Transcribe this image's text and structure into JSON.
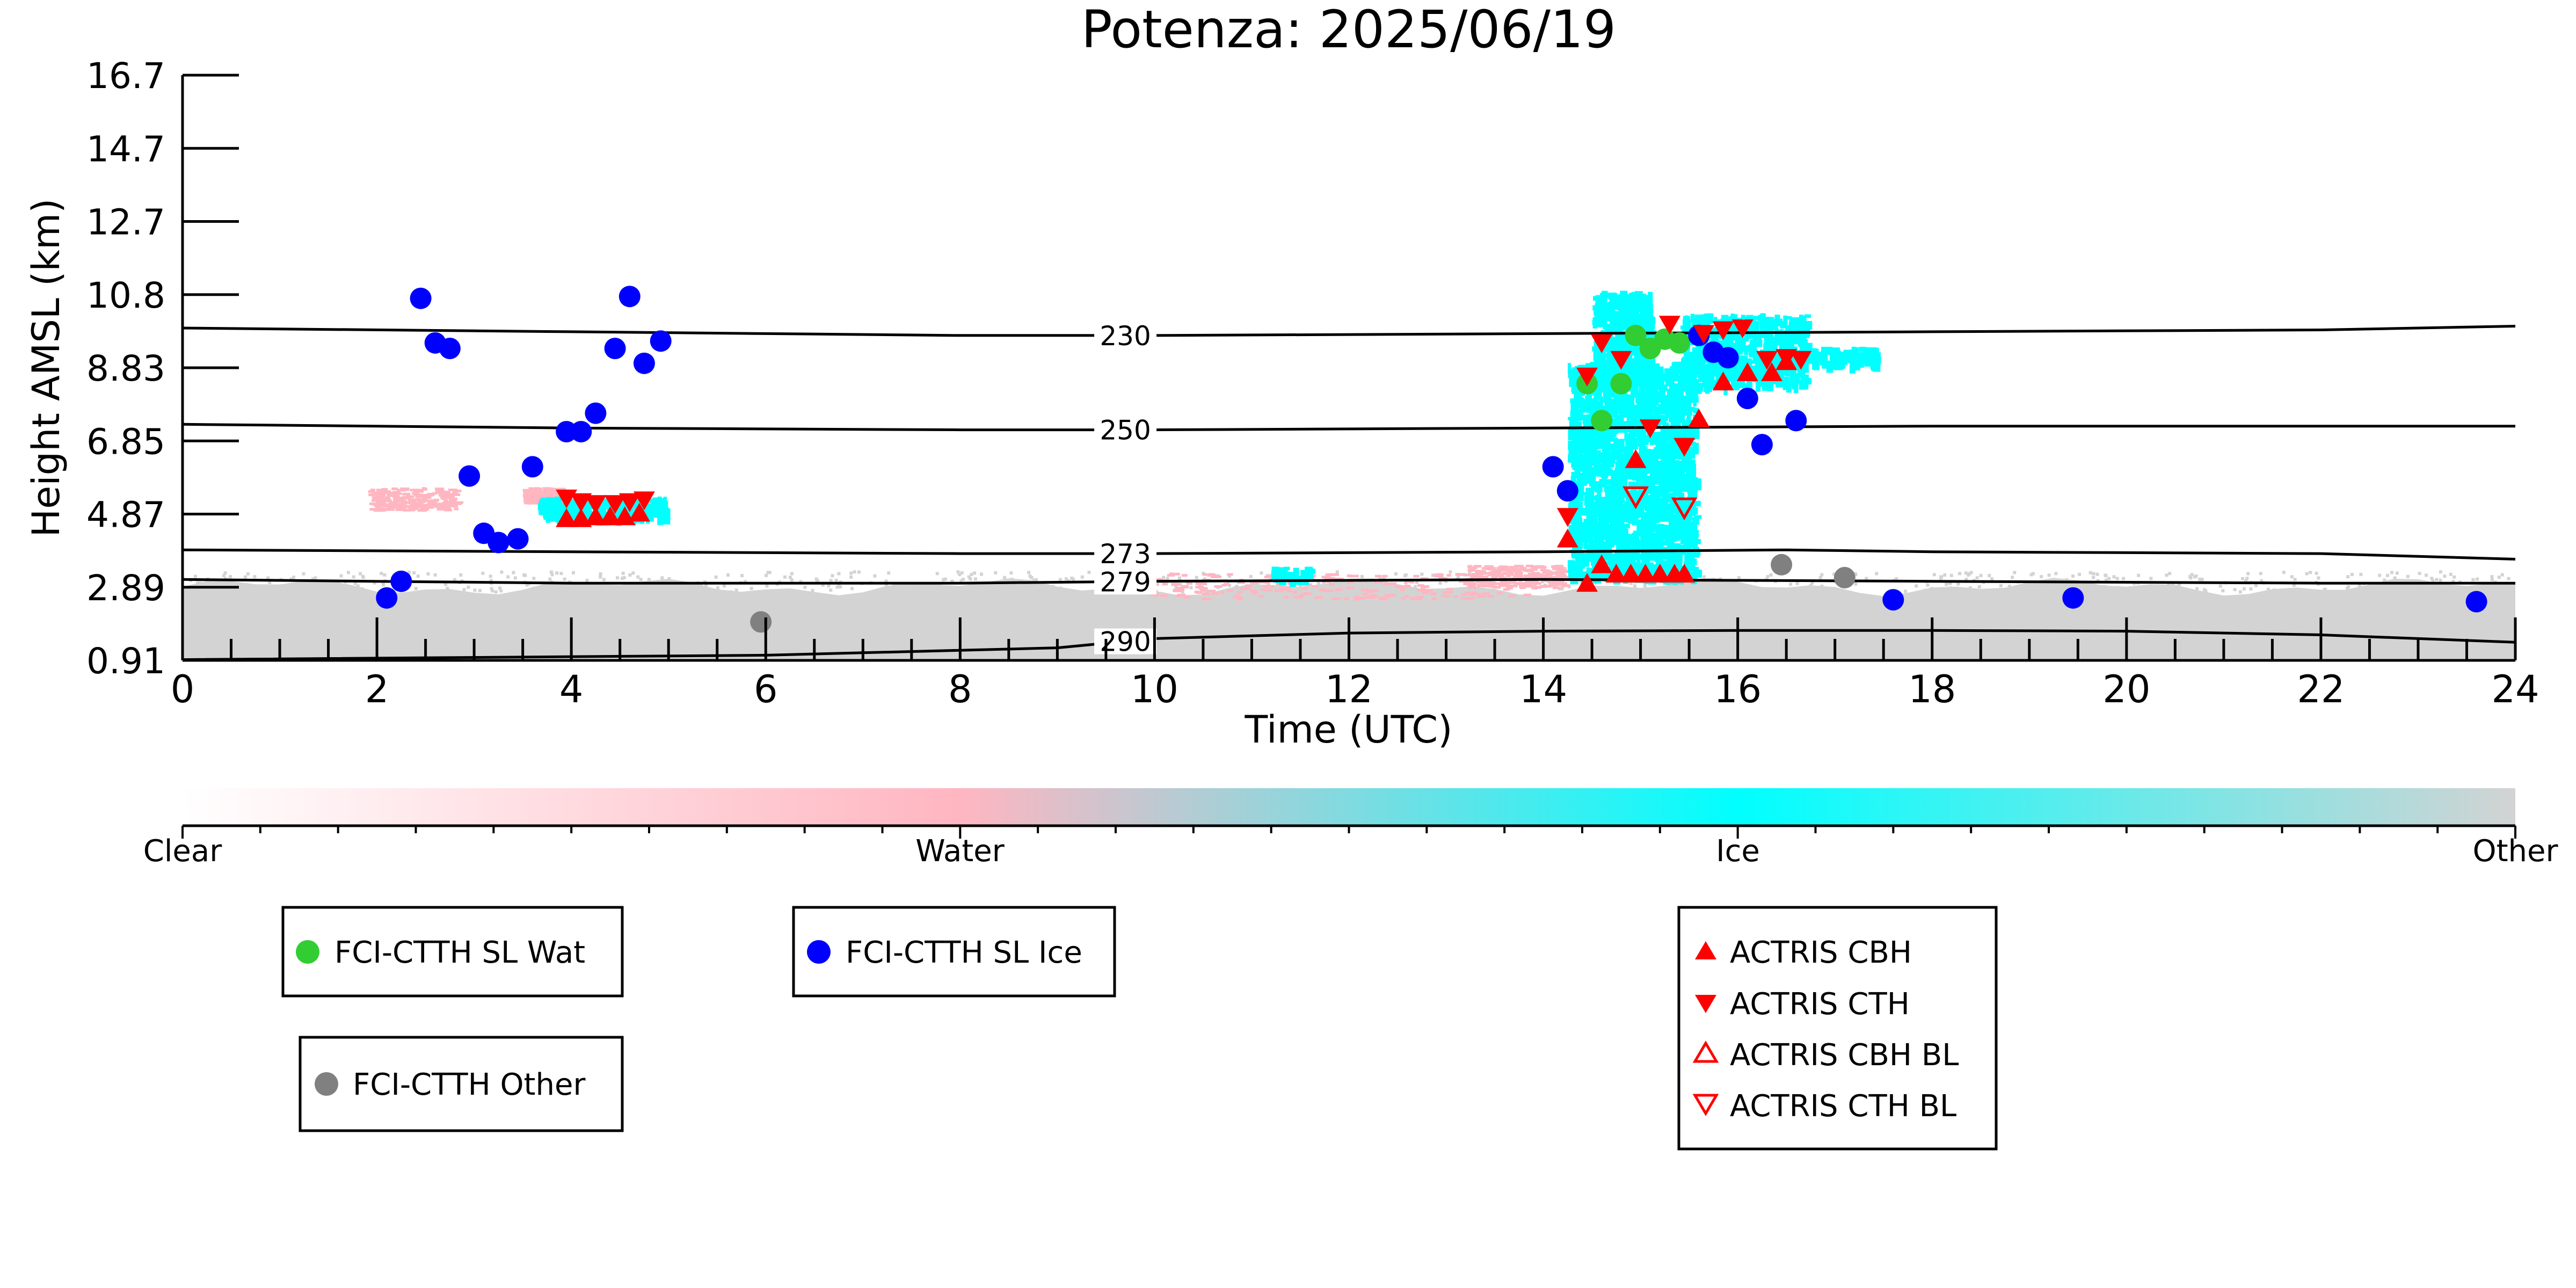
{
  "chart_data": {
    "type": "scatter",
    "title": "Potenza: 2025/06/19",
    "xlabel": "Time (UTC)",
    "ylabel": "Height AMSL (km)",
    "xlim": [
      0,
      24
    ],
    "ylim": [
      0.91,
      16.7
    ],
    "x_ticks": [
      "0",
      "2",
      "4",
      "6",
      "8",
      "10",
      "12",
      "14",
      "16",
      "18",
      "20",
      "22",
      "24"
    ],
    "y_ticks": [
      "0.91",
      "2.89",
      "4.87",
      "6.85",
      "8.83",
      "10.8",
      "12.7",
      "14.7",
      "16.7"
    ],
    "y_tick_values": [
      0.91,
      2.89,
      4.87,
      6.85,
      8.83,
      10.8,
      12.7,
      14.7,
      16.7
    ],
    "grid": false,
    "colors": {
      "clear": "#ffffff",
      "water": "#ffb6c1",
      "ice": "#00ffff",
      "other": "#d3d3d3",
      "wat_marker": "#32cd32",
      "ice_marker": "#0000ff",
      "other_marker": "#808080",
      "actris": "#ff0000"
    },
    "isotherms": [
      {
        "label": "230",
        "label_x": 9.7,
        "points": [
          [
            0,
            9.9
          ],
          [
            4,
            9.8
          ],
          [
            8,
            9.7
          ],
          [
            10,
            9.7
          ],
          [
            14,
            9.75
          ],
          [
            18,
            9.8
          ],
          [
            22,
            9.85
          ],
          [
            24,
            9.95
          ]
        ]
      },
      {
        "label": "250",
        "label_x": 9.7,
        "points": [
          [
            0,
            7.3
          ],
          [
            4,
            7.2
          ],
          [
            8,
            7.15
          ],
          [
            10,
            7.15
          ],
          [
            14,
            7.2
          ],
          [
            18,
            7.25
          ],
          [
            22,
            7.25
          ],
          [
            24,
            7.25
          ]
        ]
      },
      {
        "label": "273",
        "label_x": 9.7,
        "points": [
          [
            0,
            3.9
          ],
          [
            4,
            3.85
          ],
          [
            8,
            3.8
          ],
          [
            10,
            3.8
          ],
          [
            14,
            3.85
          ],
          [
            16.5,
            3.9
          ],
          [
            18,
            3.85
          ],
          [
            22,
            3.8
          ],
          [
            24,
            3.65
          ]
        ]
      },
      {
        "label": "279",
        "label_x": 9.7,
        "points": [
          [
            0,
            3.1
          ],
          [
            4,
            3.0
          ],
          [
            8,
            3.0
          ],
          [
            10,
            3.05
          ],
          [
            14,
            3.1
          ],
          [
            18,
            3.05
          ],
          [
            22,
            3.0
          ],
          [
            24,
            3.0
          ]
        ]
      },
      {
        "label": "290",
        "label_x": 9.7,
        "points": [
          [
            0,
            0.93
          ],
          [
            6,
            1.05
          ],
          [
            9,
            1.25
          ],
          [
            10,
            1.5
          ],
          [
            12,
            1.65
          ],
          [
            14,
            1.7
          ],
          [
            16,
            1.72
          ],
          [
            18,
            1.72
          ],
          [
            20,
            1.7
          ],
          [
            22,
            1.6
          ],
          [
            24,
            1.4
          ]
        ]
      }
    ],
    "series": [
      {
        "name": "FCI-CTTH SL Wat",
        "marker": "circle",
        "color": "#32cd32",
        "points": [
          [
            14.45,
            8.4
          ],
          [
            14.6,
            7.4
          ],
          [
            14.8,
            8.4
          ],
          [
            14.95,
            9.7
          ],
          [
            15.1,
            9.35
          ],
          [
            15.25,
            9.6
          ],
          [
            15.4,
            9.5
          ]
        ]
      },
      {
        "name": "FCI-CTTH SL Ice",
        "marker": "circle",
        "color": "#0000ff",
        "points": [
          [
            2.1,
            2.6
          ],
          [
            2.25,
            3.05
          ],
          [
            2.45,
            10.7
          ],
          [
            2.6,
            9.5
          ],
          [
            2.75,
            9.35
          ],
          [
            2.95,
            5.9
          ],
          [
            3.1,
            4.35
          ],
          [
            3.25,
            4.1
          ],
          [
            3.45,
            4.2
          ],
          [
            3.6,
            6.15
          ],
          [
            3.95,
            7.1
          ],
          [
            4.1,
            7.1
          ],
          [
            4.25,
            7.6
          ],
          [
            4.45,
            9.35
          ],
          [
            4.6,
            10.75
          ],
          [
            4.75,
            8.95
          ],
          [
            4.92,
            9.55
          ],
          [
            14.1,
            6.15
          ],
          [
            14.25,
            5.5
          ],
          [
            15.6,
            9.7
          ],
          [
            15.75,
            9.25
          ],
          [
            15.9,
            9.1
          ],
          [
            16.1,
            8.0
          ],
          [
            16.25,
            6.75
          ],
          [
            16.6,
            7.4
          ],
          [
            17.6,
            2.55
          ],
          [
            19.45,
            2.6
          ],
          [
            23.6,
            2.5
          ]
        ]
      },
      {
        "name": "FCI-CTTH Other",
        "marker": "circle",
        "color": "#808080",
        "points": [
          [
            5.95,
            1.95
          ],
          [
            16.45,
            3.5
          ],
          [
            17.1,
            3.15
          ]
        ]
      },
      {
        "name": "ACTRIS CBH",
        "marker": "triangle-up-filled",
        "color": "#ff0000",
        "points": [
          [
            3.95,
            4.75
          ],
          [
            4.1,
            4.75
          ],
          [
            4.25,
            4.8
          ],
          [
            4.4,
            4.8
          ],
          [
            4.55,
            4.8
          ],
          [
            4.7,
            4.9
          ],
          [
            14.25,
            4.2
          ],
          [
            14.45,
            3.0
          ],
          [
            14.6,
            3.5
          ],
          [
            14.75,
            3.25
          ],
          [
            14.9,
            3.25
          ],
          [
            15.05,
            3.25
          ],
          [
            15.2,
            3.25
          ],
          [
            15.35,
            3.25
          ],
          [
            15.45,
            3.25
          ],
          [
            14.95,
            6.35
          ],
          [
            15.6,
            7.45
          ],
          [
            15.85,
            8.45
          ],
          [
            16.1,
            8.7
          ],
          [
            16.35,
            8.7
          ],
          [
            16.5,
            9.0
          ]
        ]
      },
      {
        "name": "ACTRIS CTH",
        "marker": "triangle-down-filled",
        "color": "#ff0000",
        "points": [
          [
            3.95,
            5.3
          ],
          [
            4.1,
            5.2
          ],
          [
            4.25,
            5.15
          ],
          [
            4.45,
            5.15
          ],
          [
            4.6,
            5.2
          ],
          [
            4.75,
            5.25
          ],
          [
            14.25,
            4.8
          ],
          [
            14.45,
            8.6
          ],
          [
            14.6,
            9.5
          ],
          [
            14.8,
            9.05
          ],
          [
            15.1,
            7.2
          ],
          [
            15.3,
            10.0
          ],
          [
            15.45,
            6.7
          ],
          [
            15.65,
            9.75
          ],
          [
            15.85,
            9.85
          ],
          [
            16.05,
            9.9
          ],
          [
            16.3,
            9.05
          ],
          [
            16.5,
            9.1
          ],
          [
            16.65,
            9.05
          ]
        ]
      },
      {
        "name": "ACTRIS CBH BL",
        "marker": "triangle-up-open",
        "color": "#ff0000",
        "points": []
      },
      {
        "name": "ACTRIS CTH BL",
        "marker": "triangle-down-open",
        "color": "#ff0000",
        "points": [
          [
            14.95,
            5.35
          ],
          [
            15.45,
            5.05
          ]
        ]
      }
    ],
    "colorbar": {
      "labels": [
        "Clear",
        "Water",
        "Ice",
        "Other"
      ],
      "stops": [
        "#ffffff",
        "#ffb6c1",
        "#00ffff",
        "#d3d3d3"
      ]
    },
    "legends": [
      {
        "entries": [
          "FCI-CTTH SL Wat"
        ]
      },
      {
        "entries": [
          "FCI-CTTH SL Ice"
        ]
      },
      {
        "entries": [
          "FCI-CTTH Other"
        ]
      },
      {
        "entries": [
          "ACTRIS CBH",
          "ACTRIS CTH",
          "ACTRIS CBH BL",
          "ACTRIS CTH BL"
        ]
      }
    ]
  }
}
